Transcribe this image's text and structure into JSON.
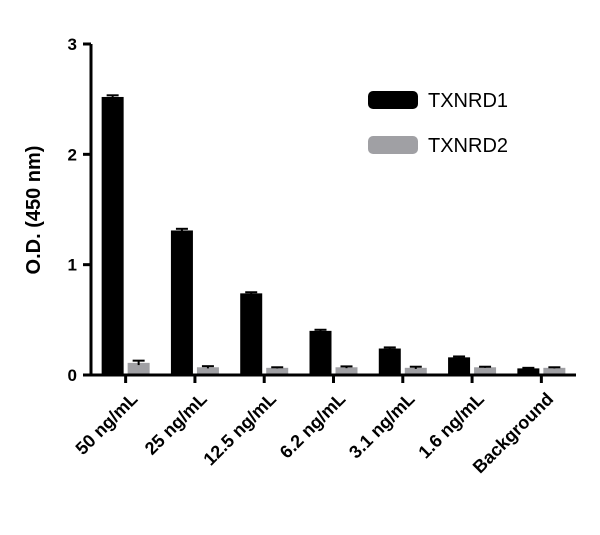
{
  "chart_data": {
    "type": "bar",
    "categories": [
      "50 ng/mL",
      "25 ng/mL",
      "12.5 ng/mL",
      "6.2 ng/mL",
      "3.1 ng/mL",
      "1.6 ng/mL",
      "Background"
    ],
    "series": [
      {
        "name": "TXNRD1",
        "color": "#000000",
        "values": [
          2.52,
          1.31,
          0.74,
          0.4,
          0.24,
          0.16,
          0.06
        ],
        "errors": [
          0.015,
          0.015,
          0.01,
          0.01,
          0.01,
          0.008,
          0.005
        ]
      },
      {
        "name": "TXNRD2",
        "color": "#a0a0a4",
        "values": [
          0.11,
          0.07,
          0.065,
          0.07,
          0.065,
          0.07,
          0.065
        ],
        "errors": [
          0.02,
          0.01,
          0.005,
          0.008,
          0.01,
          0.005,
          0.005
        ]
      }
    ],
    "xlabel": "",
    "ylabel": "O.D. (450 nm)",
    "ylim": [
      0,
      3
    ],
    "yticks": [
      "0",
      "1",
      "2",
      "3"
    ],
    "grid": false,
    "legend_position": "top-right"
  }
}
